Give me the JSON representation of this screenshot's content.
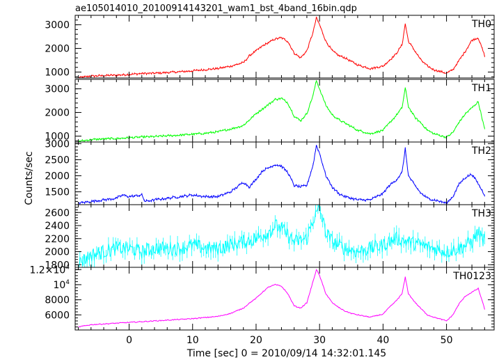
{
  "chart_data": {
    "type": "line",
    "title": "ae105014010_20100914143201_wam1_bst_4band_16bin.qdp",
    "xlabel": "Time [sec] 0 = 2010/09/14 14:32:01.145",
    "ylabel": "Counts/sec",
    "xlim": [
      -8.5,
      57.5
    ],
    "x_ticks": [
      0,
      10,
      20,
      30,
      40,
      50
    ],
    "x_tick_labels": [
      "0",
      "10",
      "20",
      "30",
      "40",
      "50"
    ],
    "grid": false,
    "legend": "none",
    "panels": [
      {
        "name": "TH0",
        "color": "#ff0000",
        "ylim": [
          750,
          3400
        ],
        "y_ticks": [
          1000,
          2000,
          3000
        ],
        "y_tick_labels": [
          "1000",
          "2000",
          "3000"
        ],
        "noise": 40,
        "x": [
          -8,
          -6,
          -4,
          -2,
          0,
          2,
          4,
          6,
          8,
          10,
          12,
          14,
          16,
          18,
          19,
          20,
          21,
          22,
          23,
          24,
          25,
          26,
          27,
          28,
          29,
          29.5,
          30,
          31,
          32,
          33,
          34,
          35,
          36,
          38,
          40,
          41,
          42,
          43,
          43.5,
          44,
          45,
          46,
          47,
          48,
          50,
          51,
          52,
          53,
          54,
          55,
          56
        ],
        "y": [
          760,
          830,
          850,
          870,
          900,
          940,
          950,
          980,
          1010,
          1050,
          1100,
          1150,
          1250,
          1400,
          1700,
          1900,
          2100,
          2250,
          2400,
          2450,
          2300,
          1800,
          1600,
          1900,
          2700,
          3300,
          3000,
          2300,
          1900,
          1700,
          1600,
          1450,
          1300,
          1150,
          1250,
          1500,
          1750,
          2150,
          3050,
          2300,
          1900,
          1500,
          1250,
          1100,
          950,
          1100,
          1500,
          1900,
          2350,
          2450,
          1700
        ]
      },
      {
        "name": "TH1",
        "color": "#00ff00",
        "ylim": [
          750,
          3400
        ],
        "y_ticks": [
          1000,
          2000,
          3000
        ],
        "y_tick_labels": [
          "1000",
          "2000",
          "3000"
        ],
        "noise": 40,
        "x": [
          -8,
          -6,
          -4,
          -2,
          0,
          2,
          4,
          6,
          8,
          10,
          12,
          14,
          16,
          18,
          19,
          20,
          21,
          22,
          23,
          24,
          25,
          26,
          27,
          28,
          29,
          29.5,
          30,
          31,
          32,
          33,
          34,
          35,
          36,
          38,
          40,
          41,
          42,
          43,
          43.5,
          44,
          45,
          46,
          47,
          48,
          50,
          51,
          52,
          53,
          54,
          55,
          56
        ],
        "y": [
          780,
          850,
          880,
          900,
          930,
          960,
          980,
          1010,
          1040,
          1080,
          1120,
          1180,
          1300,
          1450,
          1700,
          1950,
          2150,
          2350,
          2550,
          2600,
          2400,
          1850,
          1650,
          1950,
          2750,
          3350,
          3000,
          2300,
          1900,
          1700,
          1550,
          1400,
          1250,
          1100,
          1250,
          1550,
          1850,
          2200,
          3050,
          2250,
          1800,
          1550,
          1250,
          1100,
          950,
          1150,
          1600,
          1950,
          2200,
          2450,
          1300
        ]
      },
      {
        "name": "TH2",
        "color": "#0000ff",
        "ylim": [
          1100,
          3050
        ],
        "y_ticks": [
          1500,
          2000,
          2500,
          3000
        ],
        "y_tick_labels": [
          "1500",
          "2000",
          "2500",
          "3000"
        ],
        "noise": 35,
        "x": [
          -8,
          -6,
          -4,
          -2,
          -1,
          0,
          2,
          2.5,
          4,
          6,
          8,
          10,
          12,
          14,
          16,
          18,
          19,
          20,
          21,
          22,
          23,
          24,
          25,
          26,
          27,
          28,
          29,
          29.5,
          30,
          31,
          32,
          33,
          34,
          35,
          36,
          38,
          40,
          41,
          42,
          43,
          43.5,
          44,
          45,
          46,
          47,
          48,
          50,
          51,
          52,
          53,
          54,
          55,
          56
        ],
        "y": [
          1150,
          1200,
          1250,
          1300,
          1400,
          1350,
          1400,
          1200,
          1250,
          1300,
          1350,
          1400,
          1350,
          1350,
          1500,
          1800,
          1650,
          1900,
          2150,
          2250,
          2350,
          2300,
          2100,
          1700,
          1650,
          1700,
          2350,
          2950,
          2700,
          2000,
          1650,
          1450,
          1350,
          1300,
          1250,
          1250,
          1450,
          1700,
          1850,
          2100,
          2850,
          2000,
          1700,
          1450,
          1300,
          1250,
          1150,
          1350,
          1750,
          1950,
          2050,
          1750,
          1400
        ]
      },
      {
        "name": "TH3",
        "color": "#00ffff",
        "ylim": [
          1760,
          2720
        ],
        "y_ticks": [
          1800,
          2000,
          2200,
          2400,
          2600
        ],
        "y_tick_labels": [
          "1800",
          "2000",
          "2200",
          "2400",
          "2600"
        ],
        "noise": 110,
        "x": [
          -8,
          -6,
          -4,
          -2,
          0,
          2,
          4,
          6,
          8,
          10,
          12,
          14,
          16,
          18,
          20,
          22,
          23,
          24,
          26,
          28,
          29,
          30,
          31,
          32,
          34,
          36,
          38,
          40,
          42,
          44,
          46,
          48,
          50,
          52,
          54,
          55,
          56
        ],
        "y": [
          1820,
          1950,
          2000,
          2050,
          2050,
          2000,
          2050,
          2050,
          2050,
          2100,
          2050,
          2050,
          2100,
          2150,
          2200,
          2300,
          2400,
          2350,
          2150,
          2200,
          2500,
          2650,
          2300,
          2150,
          2050,
          2000,
          2050,
          2100,
          2200,
          2150,
          2100,
          2050,
          2000,
          2050,
          2150,
          2300,
          2150
        ]
      },
      {
        "name": "TH0123",
        "color": "#ff00ff",
        "ylim": [
          4000,
          12300
        ],
        "y_ticks": [
          6000,
          8000,
          10000,
          12000
        ],
        "y_tick_labels": [
          "6000",
          "8000",
          "10⁴",
          "1.2×10⁴"
        ],
        "noise": 60,
        "x": [
          -8,
          -6,
          -4,
          -2,
          0,
          2,
          4,
          6,
          8,
          10,
          12,
          14,
          16,
          18,
          19,
          20,
          21,
          22,
          23,
          24,
          25,
          26,
          27,
          28,
          29,
          29.5,
          30,
          31,
          32,
          33,
          34,
          35,
          36,
          38,
          40,
          41,
          42,
          43,
          43.5,
          44,
          45,
          46,
          47,
          48,
          50,
          51,
          52,
          53,
          54,
          55,
          56
        ],
        "y": [
          4400,
          4700,
          4800,
          4900,
          5000,
          5100,
          5200,
          5300,
          5400,
          5500,
          5650,
          5800,
          6200,
          6900,
          7600,
          8200,
          9000,
          9700,
          10000,
          9800,
          8800,
          7200,
          6900,
          7600,
          10500,
          12000,
          11200,
          8800,
          7600,
          7000,
          6500,
          6200,
          6000,
          5700,
          6100,
          7000,
          7800,
          8800,
          11000,
          8800,
          7700,
          6800,
          6000,
          5700,
          5200,
          6000,
          7500,
          8500,
          9000,
          9500,
          6800
        ]
      }
    ]
  }
}
